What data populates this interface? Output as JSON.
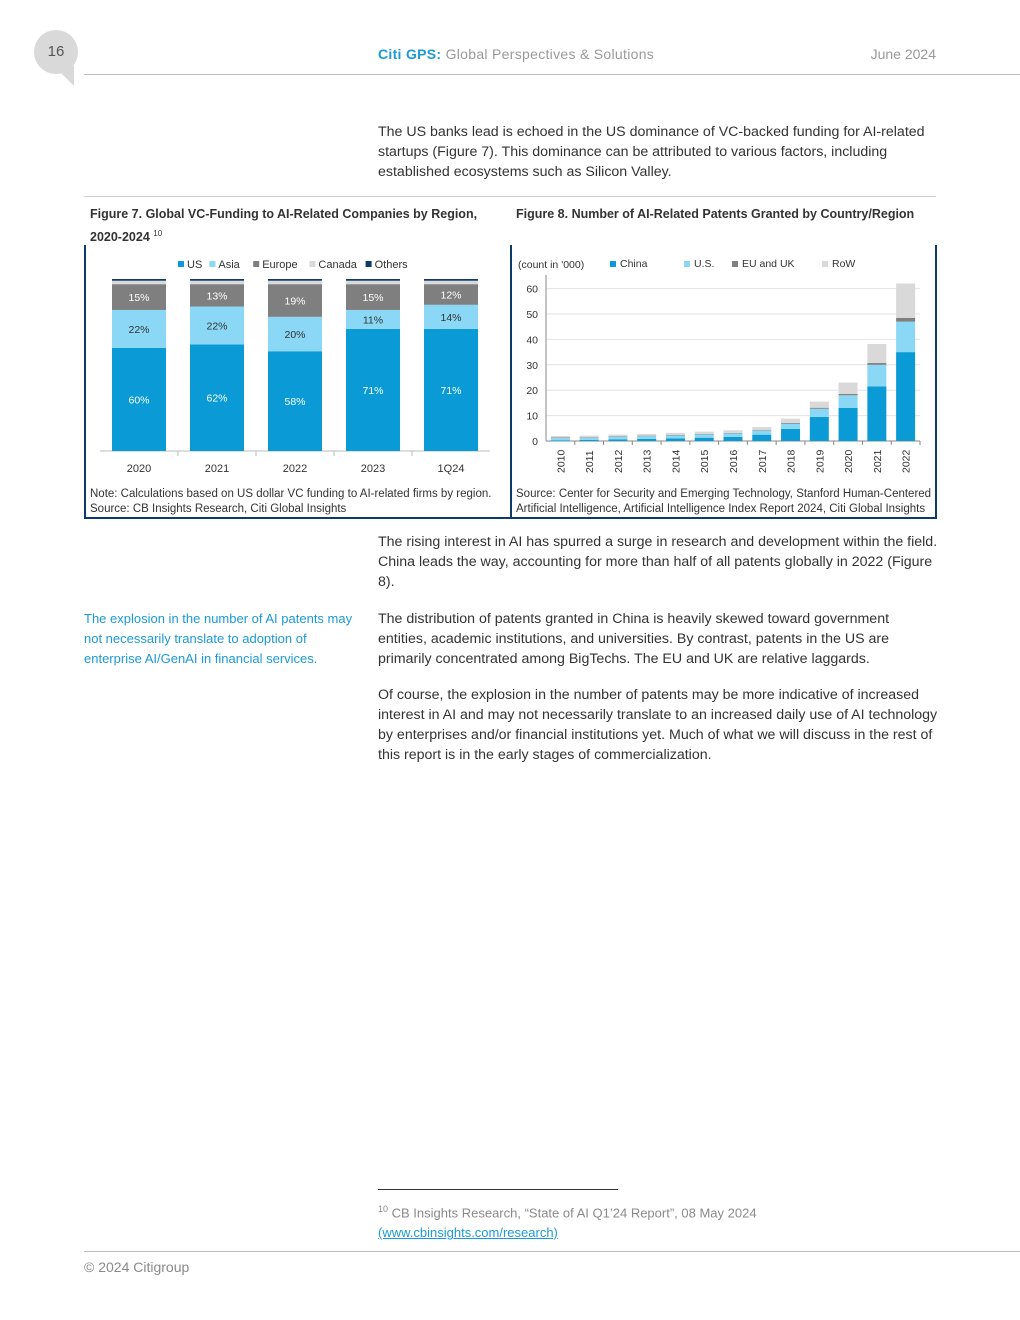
{
  "page": {
    "number": "16",
    "brand": "Citi GPS:",
    "brand_subtitle": "Global Perspectives & Solutions",
    "date": "June 2024",
    "copyright": "© 2024 Citigroup"
  },
  "body": {
    "para1": "The US banks lead is echoed in the US dominance of VC-backed funding for AI-related startups (Figure 7). This dominance can be attributed to various factors, including established ecosystems such as Silicon Valley.",
    "para2": "The rising interest in AI has spurred a surge in research and development within the field. China leads the way, accounting for more than half of all patents globally in 2022 (Figure 8).",
    "para3": "The distribution of patents granted in China is heavily skewed toward government entities, academic institutions, and universities. By contrast, patents in the US are primarily concentrated among BigTechs. The EU and UK are relative laggards.",
    "para4": "Of course, the explosion in the number of patents may be more indicative of increased interest in AI and may not necessarily translate to an increased daily use of AI technology by enterprises and/or financial institutions yet. Much of what we will discuss in the rest of this report is in the early stages of commercialization.",
    "sidebar": "The explosion in the number of AI patents may not necessarily translate to adoption of enterprise AI/GenAI in financial services."
  },
  "figure7": {
    "title": "Figure 7. Global VC-Funding to AI-Related Companies by Region, 2020-2024",
    "title_sup": "10",
    "note1": "Note: Calculations based on US dollar VC funding to AI-related firms by region.",
    "note2": "Source: CB Insights Research, Citi Global Insights"
  },
  "figure8": {
    "title": "Figure 8. Number of AI-Related Patents Granted by Country/Region",
    "note1": "Source: Center for Security and Emerging Technology, Stanford Human-Centered",
    "note2": "Artificial Intelligence, Artificial Intelligence Index Report 2024, Citi Global Insights"
  },
  "footnote": {
    "number": "10",
    "text": "CB Insights Research, “State of AI Q1’24 Report”, 08 May 2024",
    "link": "(www.cbinsights.com/research)"
  },
  "chart_data": [
    {
      "type": "bar",
      "stacked": true,
      "percent": true,
      "categories": [
        "2020",
        "2021",
        "2022",
        "2023",
        "1Q24"
      ],
      "series": [
        {
          "name": "US",
          "color": "#0a9bd7",
          "values": [
            60,
            62,
            58,
            71,
            71
          ]
        },
        {
          "name": "Asia",
          "color": "#8ad8f5",
          "values": [
            22,
            22,
            20,
            11,
            14
          ]
        },
        {
          "name": "Europe",
          "color": "#7f7f7f",
          "values": [
            15,
            13,
            19,
            15,
            12
          ]
        },
        {
          "name": "Canada",
          "color": "#d9d9d9",
          "values": [
            2,
            2,
            2,
            2,
            2
          ]
        },
        {
          "name": "Others",
          "color": "#0b3a6b",
          "values": [
            1,
            1,
            1,
            1,
            1
          ]
        }
      ],
      "labels": {
        "US": [
          "60%",
          "62%",
          "58%",
          "71%",
          "71%"
        ],
        "Asia": [
          "22%",
          "22%",
          "20%",
          "11%",
          "14%"
        ],
        "Europe": [
          "15%",
          "13%",
          "19%",
          "15%",
          "12%"
        ]
      },
      "ylim": [
        0,
        100
      ],
      "legend": "top",
      "grid": false
    },
    {
      "type": "bar",
      "stacked": true,
      "ylabel": "(count in '000)",
      "categories": [
        "2010",
        "2011",
        "2012",
        "2013",
        "2014",
        "2015",
        "2016",
        "2017",
        "2018",
        "2019",
        "2020",
        "2021",
        "2022"
      ],
      "series": [
        {
          "name": "China",
          "color": "#0a9bd7",
          "values": [
            0.3,
            0.4,
            0.6,
            0.8,
            1.0,
            1.3,
            1.6,
            2.5,
            4.8,
            9.5,
            13.0,
            21.5,
            35.0
          ]
        },
        {
          "name": "U.S.",
          "color": "#8ad8f5",
          "values": [
            0.9,
            0.9,
            1.0,
            1.1,
            1.2,
            1.3,
            1.4,
            1.6,
            2.0,
            3.2,
            5.0,
            8.5,
            12.0
          ]
        },
        {
          "name": "EU and UK",
          "color": "#7f7f7f",
          "values": [
            0.2,
            0.2,
            0.2,
            0.2,
            0.2,
            0.2,
            0.2,
            0.2,
            0.3,
            0.4,
            0.5,
            0.7,
            1.5
          ]
        },
        {
          "name": "RoW",
          "color": "#d9d9d9",
          "values": [
            0.6,
            0.6,
            0.7,
            0.7,
            0.8,
            0.9,
            1.0,
            1.2,
            1.7,
            2.4,
            4.5,
            7.5,
            13.5
          ]
        }
      ],
      "yticks": [
        0,
        10,
        20,
        30,
        40,
        50,
        60
      ],
      "ylim": [
        0,
        63
      ],
      "legend": "top",
      "grid": true
    }
  ]
}
